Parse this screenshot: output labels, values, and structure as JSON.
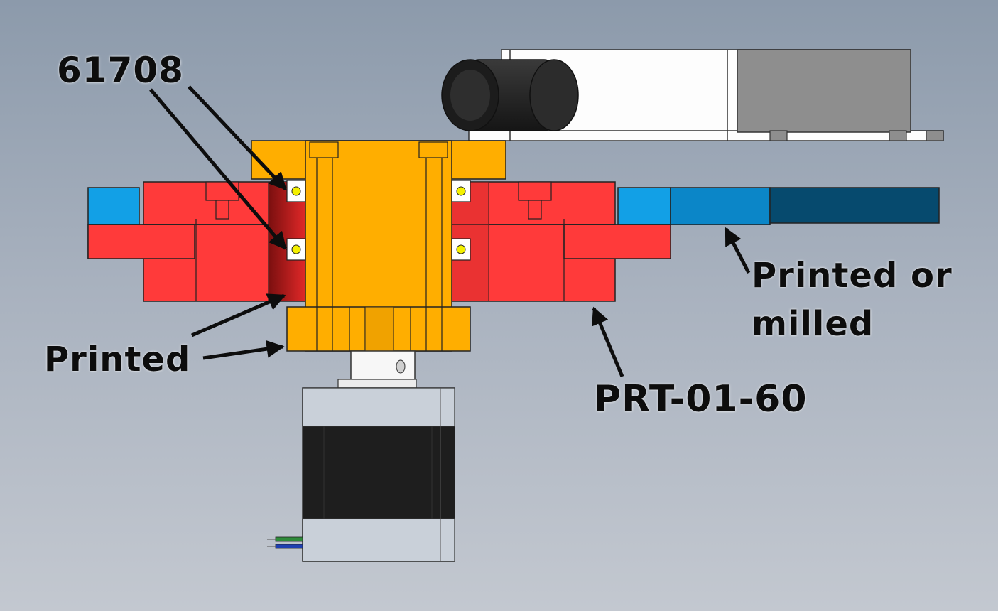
{
  "labels": {
    "bearing": "61708",
    "printed": "Printed",
    "printed_or_milled_line1": "Printed or",
    "printed_or_milled_line2": "milled",
    "part_number": "PRT-01-60"
  },
  "colors": {
    "background_top": "#8c9aab",
    "background_bottom": "#c3c8d0",
    "hub_orange": "#ffae00",
    "clamp_red": "#ff3a3a",
    "bar_light_blue": "#12a0e6",
    "bar_mid_blue": "#0b86c8",
    "bar_dark_blue": "#064a6e",
    "motor_gray": "#c9d0d9",
    "motor_black": "#1e1e1e",
    "arrow": "#0d0d0d"
  },
  "icons": [
    "bearing-icon",
    "stepper-motor-icon",
    "pulley-icon",
    "camera-module-icon"
  ]
}
